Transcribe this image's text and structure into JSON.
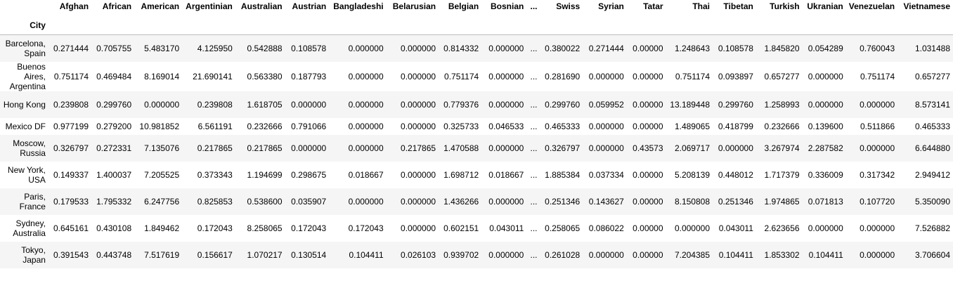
{
  "table": {
    "index_name": "City",
    "columns": [
      "Afghan",
      "African",
      "American",
      "Argentinian",
      "Australian",
      "Austrian",
      "Bangladeshi",
      "Belarusian",
      "Belgian",
      "Bosnian",
      "...",
      "Swiss",
      "Syrian",
      "Tatar",
      "Thai",
      "Tibetan",
      "Turkish",
      "Ukranian",
      "Venezuelan",
      "Vietnamese"
    ],
    "rows": [
      {
        "city": "Barcelona, Spain",
        "values": [
          "0.271444",
          "0.705755",
          "5.483170",
          "4.125950",
          "0.542888",
          "0.108578",
          "0.000000",
          "0.000000",
          "0.814332",
          "0.000000",
          "...",
          "0.380022",
          "0.271444",
          "0.00000",
          "1.248643",
          "0.108578",
          "1.845820",
          "0.054289",
          "0.760043",
          "1.031488"
        ]
      },
      {
        "city": "Buenos Aires, Argentina",
        "values": [
          "0.751174",
          "0.469484",
          "8.169014",
          "21.690141",
          "0.563380",
          "0.187793",
          "0.000000",
          "0.000000",
          "0.751174",
          "0.000000",
          "...",
          "0.281690",
          "0.000000",
          "0.00000",
          "0.751174",
          "0.093897",
          "0.657277",
          "0.000000",
          "0.751174",
          "0.657277"
        ]
      },
      {
        "city": "Hong Kong",
        "values": [
          "0.239808",
          "0.299760",
          "0.000000",
          "0.239808",
          "1.618705",
          "0.000000",
          "0.000000",
          "0.000000",
          "0.779376",
          "0.000000",
          "...",
          "0.299760",
          "0.059952",
          "0.00000",
          "13.189448",
          "0.299760",
          "1.258993",
          "0.000000",
          "0.000000",
          "8.573141"
        ]
      },
      {
        "city": "Mexico DF",
        "values": [
          "0.977199",
          "0.279200",
          "10.981852",
          "6.561191",
          "0.232666",
          "0.791066",
          "0.000000",
          "0.000000",
          "0.325733",
          "0.046533",
          "...",
          "0.465333",
          "0.000000",
          "0.00000",
          "1.489065",
          "0.418799",
          "0.232666",
          "0.139600",
          "0.511866",
          "0.465333"
        ]
      },
      {
        "city": "Moscow, Russia",
        "values": [
          "0.326797",
          "0.272331",
          "7.135076",
          "0.217865",
          "0.217865",
          "0.000000",
          "0.000000",
          "0.217865",
          "1.470588",
          "0.000000",
          "...",
          "0.326797",
          "0.000000",
          "0.43573",
          "2.069717",
          "0.000000",
          "3.267974",
          "2.287582",
          "0.000000",
          "6.644880"
        ]
      },
      {
        "city": "New York, USA",
        "values": [
          "0.149337",
          "1.400037",
          "7.205525",
          "0.373343",
          "1.194699",
          "0.298675",
          "0.018667",
          "0.000000",
          "1.698712",
          "0.018667",
          "...",
          "1.885384",
          "0.037334",
          "0.00000",
          "5.208139",
          "0.448012",
          "1.717379",
          "0.336009",
          "0.317342",
          "2.949412"
        ]
      },
      {
        "city": "Paris, France",
        "values": [
          "0.179533",
          "1.795332",
          "6.247756",
          "0.825853",
          "0.538600",
          "0.035907",
          "0.000000",
          "0.000000",
          "1.436266",
          "0.000000",
          "...",
          "0.251346",
          "0.143627",
          "0.00000",
          "8.150808",
          "0.251346",
          "1.974865",
          "0.071813",
          "0.107720",
          "5.350090"
        ]
      },
      {
        "city": "Sydney, Australia",
        "values": [
          "0.645161",
          "0.430108",
          "1.849462",
          "0.172043",
          "8.258065",
          "0.172043",
          "0.172043",
          "0.000000",
          "0.602151",
          "0.043011",
          "...",
          "0.258065",
          "0.086022",
          "0.00000",
          "0.000000",
          "0.043011",
          "2.623656",
          "0.000000",
          "0.000000",
          "7.526882"
        ]
      },
      {
        "city": "Tokyo, Japan",
        "values": [
          "0.391543",
          "0.443748",
          "7.517619",
          "0.156617",
          "1.070217",
          "0.130514",
          "0.104411",
          "0.026103",
          "0.939702",
          "0.000000",
          "...",
          "0.261028",
          "0.000000",
          "0.00000",
          "7.204385",
          "0.104411",
          "1.853302",
          "0.104411",
          "0.000000",
          "3.706604"
        ]
      }
    ]
  }
}
